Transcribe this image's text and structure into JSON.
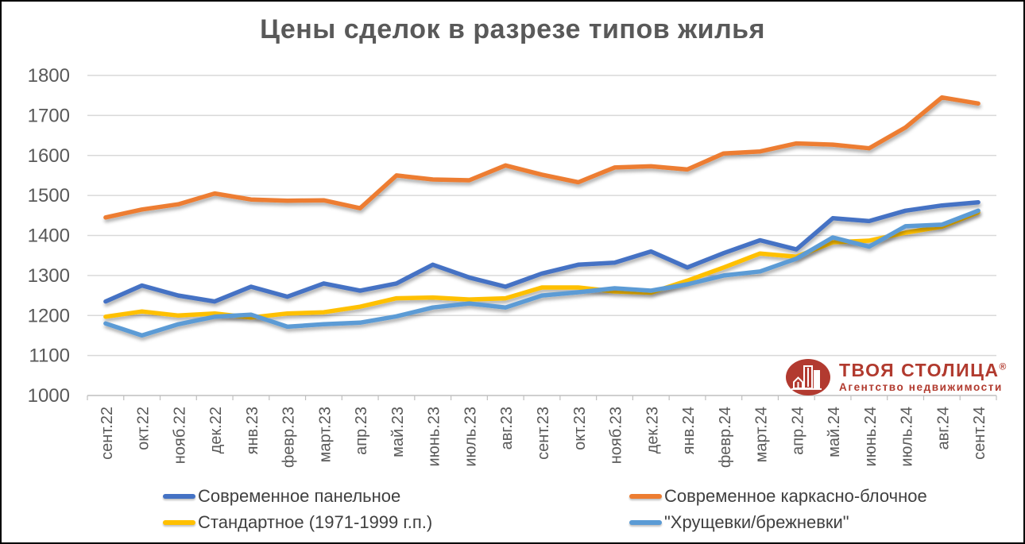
{
  "chart_data": {
    "type": "line",
    "title": "Цены сделок в разрезе типов жилья",
    "categories": [
      "сент.22",
      "окт.22",
      "нояб.22",
      "дек.22",
      "янв.23",
      "февр.23",
      "март.23",
      "апр.23",
      "май.23",
      "июнь.23",
      "июль.23",
      "авг.23",
      "сент.23",
      "окт.23",
      "нояб.23",
      "дек.23",
      "янв.24",
      "февр.24",
      "март.24",
      "апр.24",
      "май.24",
      "июнь.24",
      "июль.24",
      "авг.24",
      "сент.24"
    ],
    "series": [
      {
        "name": "Современное панельное",
        "color": "#4472c4",
        "values": [
          1235,
          1275,
          1250,
          1235,
          1272,
          1247,
          1280,
          1262,
          1280,
          1327,
          1295,
          1272,
          1305,
          1327,
          1332,
          1360,
          1320,
          1356,
          1388,
          1365,
          1443,
          1436,
          1462,
          1475,
          1483
        ]
      },
      {
        "name": "Современное каркасно-блочное",
        "color": "#ed7d31",
        "values": [
          1445,
          1465,
          1478,
          1505,
          1490,
          1487,
          1488,
          1468,
          1550,
          1540,
          1538,
          1575,
          1552,
          1533,
          1570,
          1573,
          1565,
          1605,
          1610,
          1630,
          1627,
          1618,
          1670,
          1745,
          1730
        ]
      },
      {
        "name": "Стандартное (1971-1999 г.п.)",
        "color": "#ffc000",
        "values": [
          1197,
          1210,
          1200,
          1205,
          1195,
          1205,
          1208,
          1222,
          1243,
          1245,
          1240,
          1243,
          1270,
          1270,
          1260,
          1257,
          1287,
          1320,
          1355,
          1347,
          1383,
          1387,
          1407,
          1422,
          1458
        ]
      },
      {
        "name": "\"Хрущевки/брежневки\"",
        "color": "#5b9bd5",
        "values": [
          1180,
          1150,
          1178,
          1197,
          1202,
          1172,
          1178,
          1182,
          1198,
          1220,
          1230,
          1220,
          1250,
          1258,
          1268,
          1262,
          1278,
          1300,
          1310,
          1342,
          1395,
          1372,
          1423,
          1427,
          1462
        ]
      }
    ],
    "ylim": [
      1000,
      1800
    ],
    "yticks": [
      1000,
      1100,
      1200,
      1300,
      1400,
      1500,
      1600,
      1700,
      1800
    ],
    "grid": "horizontal",
    "legend_position": "bottom"
  },
  "style": {
    "gridline_color": "#d9d9d9",
    "axis_color": "#bfbfbf",
    "tick_label_color": "#595959",
    "legend_text_color": "#404040",
    "title_color": "#595959"
  },
  "logo": {
    "name": "ТВОЯ СТОЛИЦА",
    "reg_mark": "®",
    "tagline": "Агентство недвижимости",
    "color": "#b23a30"
  }
}
